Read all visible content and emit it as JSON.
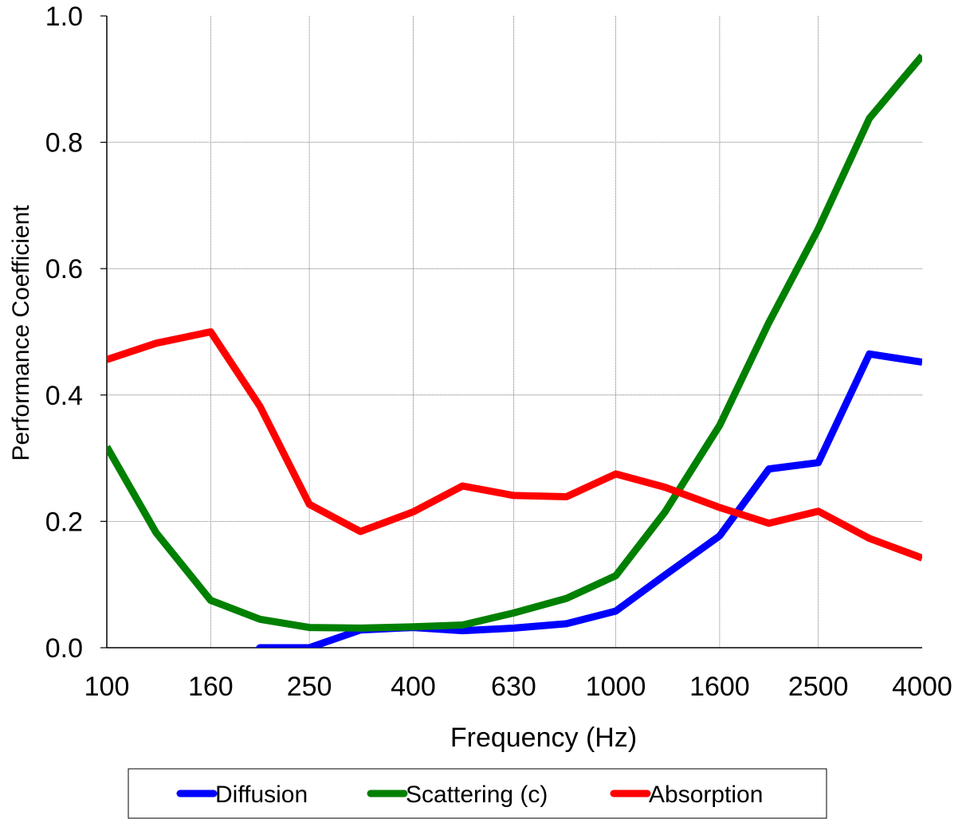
{
  "chart_data": {
    "type": "line",
    "xlabel": "Frequency (Hz)",
    "ylabel": "Performance Coefficient",
    "x_scale": "log",
    "x_tick_labels": [
      "100",
      "160",
      "250",
      "400",
      "630",
      "1000",
      "1600",
      "2500",
      "4000"
    ],
    "y_tick_labels": [
      "0.0",
      "0.2",
      "0.4",
      "0.6",
      "0.8",
      "1.0"
    ],
    "ylim": [
      0,
      1
    ],
    "grid": true,
    "legend_position": "bottom",
    "x": [
      100,
      125,
      160,
      200,
      250,
      315,
      400,
      500,
      630,
      800,
      1000,
      1250,
      1600,
      2000,
      2500,
      3150,
      4000
    ],
    "series": [
      {
        "name": "Diffusion",
        "color": "#0000ff",
        "values": [
          null,
          null,
          null,
          0.0,
          0.0,
          0.028,
          0.032,
          0.027,
          0.031,
          0.038,
          0.058,
          0.115,
          0.177,
          0.283,
          0.293,
          0.465,
          0.452
        ]
      },
      {
        "name": "Scattering (c)",
        "color": "#008000",
        "values": [
          0.318,
          0.182,
          0.075,
          0.045,
          0.032,
          0.031,
          0.033,
          0.036,
          0.055,
          0.078,
          0.114,
          0.215,
          0.352,
          0.515,
          0.663,
          0.838,
          0.937
        ]
      },
      {
        "name": "Absorption",
        "color": "#ff0000",
        "values": [
          0.456,
          0.482,
          0.5,
          0.382,
          0.227,
          0.184,
          0.215,
          0.256,
          0.241,
          0.239,
          0.275,
          0.254,
          0.222,
          0.197,
          0.216,
          0.173,
          0.142
        ]
      }
    ],
    "diffusion_leading_segment": {
      "from": [
        190,
        -0.02
      ],
      "to": [
        200,
        0.0
      ]
    }
  }
}
